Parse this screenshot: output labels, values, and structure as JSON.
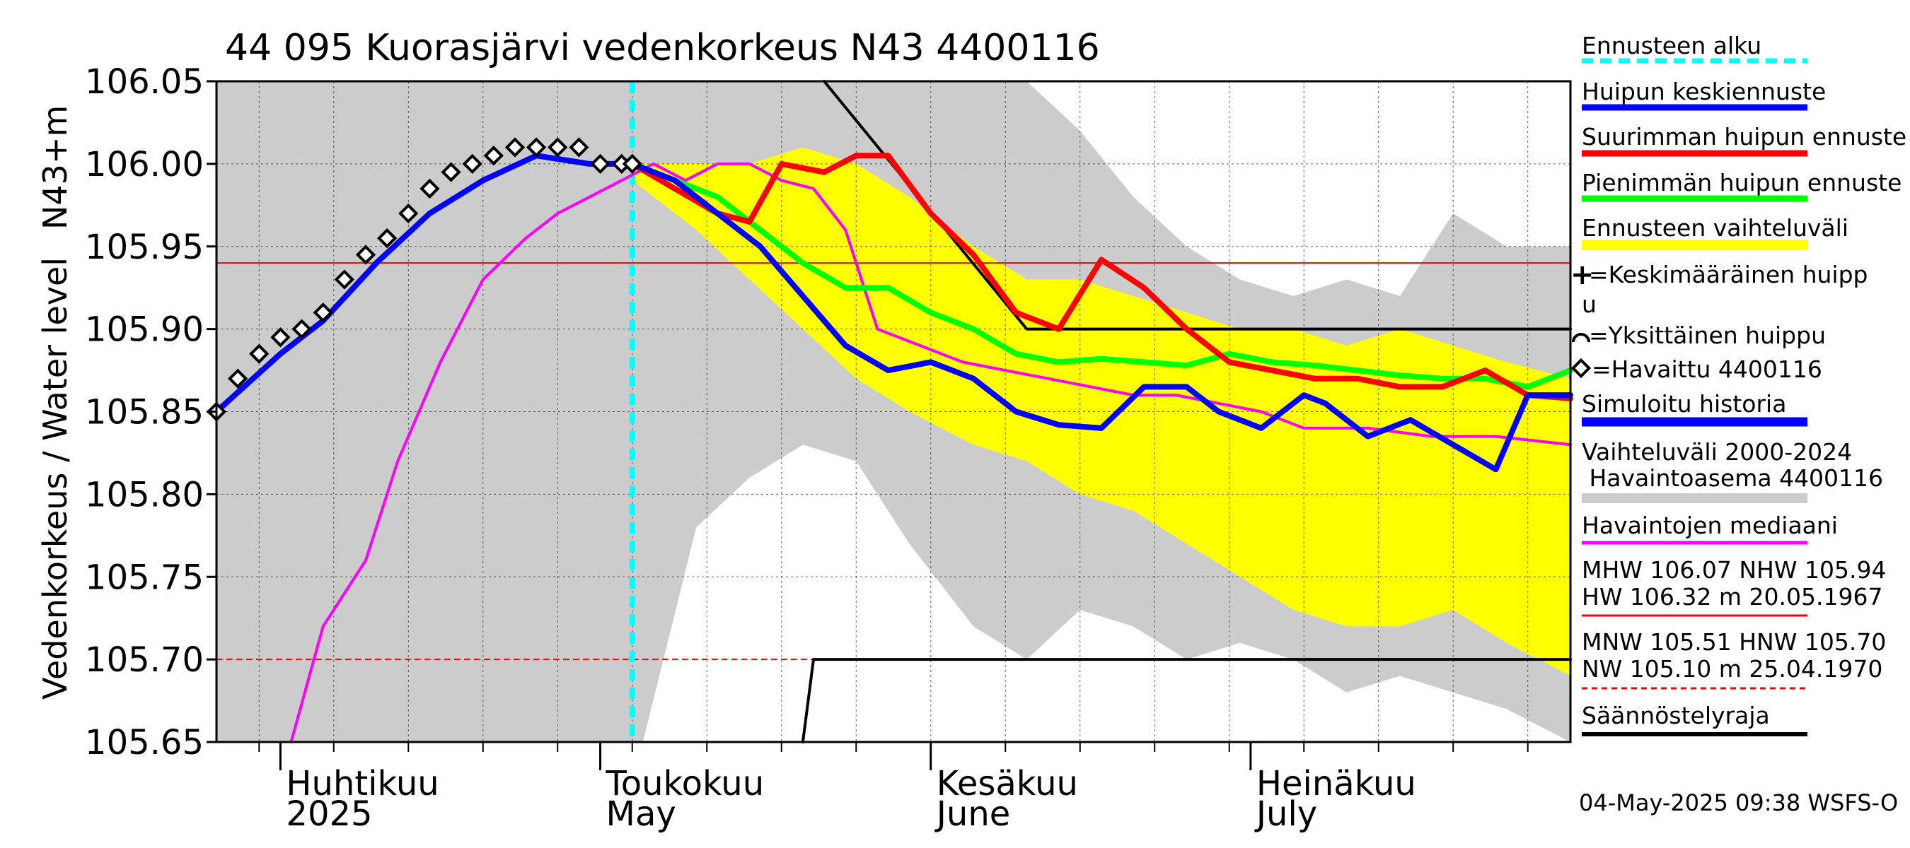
{
  "title": "44 095 Kuorasjärvi vedenkorkeus N43 4400116",
  "unit_label": "N43+m",
  "ylabel": "Vedenkorkeus / Water level",
  "timestamp": "04-May-2025 09:38 WSFS-O",
  "colors": {
    "forecast_start": "#00ffff",
    "mean_peak": "#0000ff",
    "max_peak": "#ff0000",
    "min_peak": "#00ff00",
    "forecast_range": "#ffff00",
    "simulated": "#0000ff",
    "hist_range": "#cccccc",
    "median": "#ff00ff",
    "regulation": "#000000",
    "reference": "#ff0000"
  },
  "legend": {
    "forecast_start": "Ennusteen alku",
    "mean_peak": "Huipun keskiennuste",
    "max_peak": "Suurimman huipun ennuste",
    "min_peak": "Pienimmän huipun ennuste",
    "forecast_range": "Ennusteen vaihteluväli",
    "mean_peak_marker_1": "=Keskimääräinen huipp",
    "mean_peak_marker_2": "u",
    "single_peak_marker": "=Yksittäinen huippu",
    "observed_marker": "=Havaittu 4400116",
    "simulated": "Simuloitu historia",
    "hist_range_1": "Vaihteluväli 2000-2024",
    "hist_range_2": " Havaintoasema 4400116",
    "median": "Havaintojen mediaani",
    "high_stats_1": "MHW 106.07 NHW 105.94",
    "high_stats_2": "HW 106.32 m 20.05.1967",
    "low_stats_1": "MNW 105.51 HNW 105.70",
    "low_stats_2": "NW 105.10 m 25.04.1970",
    "regulation": "Säännöstelyraja"
  },
  "chart_data": {
    "type": "line",
    "title": "44 095 Kuorasjärvi vedenkorkeus N43 4400116",
    "ylabel": "Vedenkorkeus / Water level",
    "ylim": [
      105.65,
      106.05
    ],
    "xlim": [
      "2025-03-26",
      "2025-07-31"
    ],
    "yticks": [
      105.65,
      105.7,
      105.75,
      105.8,
      105.85,
      105.9,
      105.95,
      106.0,
      106.05
    ],
    "ytick_labels": [
      "105.65",
      "105.70",
      "105.75",
      "105.80",
      "105.85",
      "105.90",
      "105.95",
      "106.00",
      "106.05"
    ],
    "month_labels": [
      {
        "date": "2025-04-01",
        "fi": "Huhtikuu",
        "en": "2025"
      },
      {
        "date": "2025-05-01",
        "fi": "Toukokuu",
        "en": "May"
      },
      {
        "date": "2025-06-01",
        "fi": "Kesäkuu",
        "en": "June"
      },
      {
        "date": "2025-07-01",
        "fi": "Heinäkuu",
        "en": "July"
      }
    ],
    "grid": true,
    "forecast_start": "2025-05-04",
    "reference_lines": [
      {
        "name": "NHW",
        "y": 105.94,
        "style": "solid"
      },
      {
        "name": "HNW",
        "y": 105.7,
        "style": "dashed"
      }
    ],
    "hist_range": {
      "x": [
        "2025-03-26",
        "2025-04-05",
        "2025-04-10",
        "2025-04-15",
        "2025-04-20",
        "2025-04-25",
        "2025-04-30",
        "2025-05-05",
        "2025-05-10",
        "2025-05-15",
        "2025-05-20",
        "2025-05-25",
        "2025-05-30",
        "2025-06-05",
        "2025-06-10",
        "2025-06-15",
        "2025-06-20",
        "2025-06-25",
        "2025-06-30",
        "2025-07-05",
        "2025-07-10",
        "2025-07-15",
        "2025-07-20",
        "2025-07-25",
        "2025-07-31"
      ],
      "upper": [
        106.05,
        106.05,
        106.05,
        106.05,
        106.05,
        106.05,
        106.05,
        106.05,
        106.05,
        106.05,
        106.05,
        106.05,
        106.05,
        106.05,
        106.05,
        106.02,
        105.98,
        105.95,
        105.93,
        105.92,
        105.93,
        105.92,
        105.97,
        105.95,
        105.95
      ],
      "lower": [
        105.65,
        105.65,
        105.65,
        105.65,
        105.65,
        105.65,
        105.65,
        105.65,
        105.78,
        105.81,
        105.83,
        105.82,
        105.77,
        105.72,
        105.7,
        105.73,
        105.72,
        105.7,
        105.71,
        105.7,
        105.68,
        105.69,
        105.68,
        105.67,
        105.65
      ]
    },
    "forecast_range": {
      "x": [
        "2025-05-04",
        "2025-05-10",
        "2025-05-15",
        "2025-05-20",
        "2025-05-25",
        "2025-05-30",
        "2025-06-05",
        "2025-06-10",
        "2025-06-15",
        "2025-06-20",
        "2025-06-25",
        "2025-06-30",
        "2025-07-05",
        "2025-07-10",
        "2025-07-15",
        "2025-07-20",
        "2025-07-25",
        "2025-07-31"
      ],
      "upper": [
        106.0,
        106.0,
        106.0,
        106.01,
        106.0,
        105.98,
        105.95,
        105.93,
        105.93,
        105.92,
        105.91,
        105.9,
        105.9,
        105.89,
        105.9,
        105.89,
        105.88,
        105.87
      ],
      "lower": [
        105.99,
        105.96,
        105.93,
        105.9,
        105.87,
        105.85,
        105.83,
        105.82,
        105.8,
        105.79,
        105.77,
        105.75,
        105.73,
        105.72,
        105.72,
        105.73,
        105.71,
        105.69
      ]
    },
    "series": [
      {
        "name": "Havaittu 4400116",
        "key": "observed",
        "marker": "diamond",
        "x": [
          "2025-03-26",
          "2025-03-28",
          "2025-03-30",
          "2025-04-01",
          "2025-04-03",
          "2025-04-05",
          "2025-04-07",
          "2025-04-09",
          "2025-04-11",
          "2025-04-13",
          "2025-04-15",
          "2025-04-17",
          "2025-04-19",
          "2025-04-21",
          "2025-04-23",
          "2025-04-25",
          "2025-04-27",
          "2025-04-29",
          "2025-05-01",
          "2025-05-03",
          "2025-05-04"
        ],
        "y": [
          105.85,
          105.87,
          105.885,
          105.895,
          105.9,
          105.91,
          105.93,
          105.945,
          105.955,
          105.97,
          105.985,
          105.995,
          106.0,
          106.005,
          106.01,
          106.01,
          106.01,
          106.01,
          106.0,
          106.0,
          106.0
        ]
      },
      {
        "name": "Simuloitu historia",
        "key": "simulated",
        "x": [
          "2025-03-26",
          "2025-04-01",
          "2025-04-05",
          "2025-04-10",
          "2025-04-15",
          "2025-04-20",
          "2025-04-25",
          "2025-04-30",
          "2025-05-04"
        ],
        "y": [
          105.85,
          105.885,
          105.905,
          105.94,
          105.97,
          105.99,
          106.005,
          106.0,
          106.0
        ]
      },
      {
        "name": "Huipun keskiennuste",
        "key": "mean_peak",
        "x": [
          "2025-05-04",
          "2025-05-08",
          "2025-05-12",
          "2025-05-16",
          "2025-05-20",
          "2025-05-24",
          "2025-05-28",
          "2025-06-01",
          "2025-06-05",
          "2025-06-09",
          "2025-06-13",
          "2025-06-17",
          "2025-06-21",
          "2025-06-25",
          "2025-06-28",
          "2025-07-02",
          "2025-07-06",
          "2025-07-08",
          "2025-07-12",
          "2025-07-16",
          "2025-07-20",
          "2025-07-24",
          "2025-07-27",
          "2025-07-31"
        ],
        "y": [
          106.0,
          105.99,
          105.97,
          105.95,
          105.92,
          105.89,
          105.875,
          105.88,
          105.87,
          105.85,
          105.842,
          105.84,
          105.865,
          105.865,
          105.85,
          105.84,
          105.86,
          105.855,
          105.835,
          105.845,
          105.83,
          105.815,
          105.86,
          105.86
        ]
      },
      {
        "name": "Suurimman huipun ennuste",
        "key": "max_peak",
        "x": [
          "2025-05-04",
          "2025-05-08",
          "2025-05-12",
          "2025-05-15",
          "2025-05-18",
          "2025-05-22",
          "2025-05-25",
          "2025-05-28",
          "2025-06-01",
          "2025-06-05",
          "2025-06-09",
          "2025-06-13",
          "2025-06-17",
          "2025-06-21",
          "2025-06-25",
          "2025-06-29",
          "2025-07-03",
          "2025-07-07",
          "2025-07-11",
          "2025-07-15",
          "2025-07-19",
          "2025-07-23",
          "2025-07-27",
          "2025-07-31"
        ],
        "y": [
          106.0,
          105.985,
          105.97,
          105.965,
          106.0,
          105.995,
          106.005,
          106.005,
          105.97,
          105.945,
          105.91,
          105.9,
          105.942,
          105.925,
          105.9,
          105.88,
          105.875,
          105.87,
          105.87,
          105.865,
          105.865,
          105.875,
          105.86,
          105.858
        ]
      },
      {
        "name": "Pienimmän huipun ennuste",
        "key": "min_peak",
        "x": [
          "2025-05-04",
          "2025-05-08",
          "2025-05-12",
          "2025-05-16",
          "2025-05-20",
          "2025-05-24",
          "2025-05-28",
          "2025-06-01",
          "2025-06-05",
          "2025-06-09",
          "2025-06-13",
          "2025-06-17",
          "2025-06-21",
          "2025-06-25",
          "2025-06-29",
          "2025-07-03",
          "2025-07-07",
          "2025-07-11",
          "2025-07-15",
          "2025-07-19",
          "2025-07-23",
          "2025-07-27",
          "2025-07-31"
        ],
        "y": [
          106.0,
          105.99,
          105.98,
          105.96,
          105.94,
          105.925,
          105.925,
          105.91,
          105.9,
          105.885,
          105.88,
          105.882,
          105.88,
          105.878,
          105.885,
          105.88,
          105.878,
          105.875,
          105.872,
          105.87,
          105.87,
          105.865,
          105.875
        ]
      },
      {
        "name": "Havaintojen mediaani",
        "key": "median",
        "x": [
          "2025-04-02",
          "2025-04-05",
          "2025-04-09",
          "2025-04-12",
          "2025-04-16",
          "2025-04-20",
          "2025-04-24",
          "2025-04-27",
          "2025-04-30",
          "2025-05-03",
          "2025-05-06",
          "2025-05-09",
          "2025-05-12",
          "2025-05-15",
          "2025-05-18",
          "2025-05-21",
          "2025-05-24",
          "2025-05-27",
          "2025-05-31",
          "2025-06-04",
          "2025-06-08",
          "2025-06-12",
          "2025-06-16",
          "2025-06-20",
          "2025-06-24",
          "2025-06-28",
          "2025-07-02",
          "2025-07-06",
          "2025-07-12",
          "2025-07-18",
          "2025-07-24",
          "2025-07-31"
        ],
        "y": [
          105.65,
          105.72,
          105.76,
          105.82,
          105.88,
          105.93,
          105.955,
          105.97,
          105.98,
          105.99,
          106.0,
          105.99,
          106.0,
          106.0,
          105.99,
          105.985,
          105.96,
          105.9,
          105.89,
          105.88,
          105.875,
          105.87,
          105.865,
          105.86,
          105.86,
          105.855,
          105.85,
          105.84,
          105.84,
          105.835,
          105.835,
          105.83
        ]
      },
      {
        "name": "Säännöstelyraja",
        "key": "regulation_upper",
        "x": [
          "2025-05-22",
          "2025-06-10",
          "2025-07-31"
        ],
        "y": [
          106.05,
          105.9,
          105.9
        ]
      },
      {
        "name": "Säännöstelyraja",
        "key": "regulation_lower",
        "x": [
          "2025-05-20",
          "2025-05-21",
          "2025-07-31"
        ],
        "y": [
          105.65,
          105.7,
          105.7
        ]
      }
    ]
  }
}
